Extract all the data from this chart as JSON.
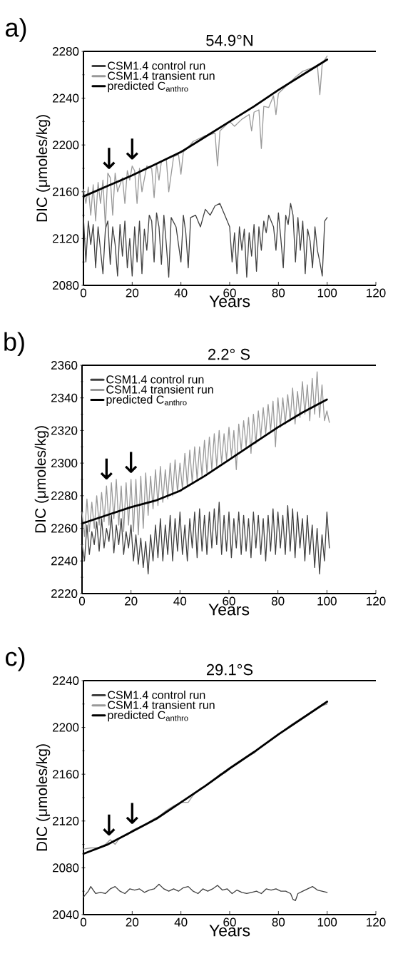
{
  "chart_data": [
    {
      "type": "line",
      "title": "54.9°N",
      "xlabel": "Years",
      "ylabel": "DIC (μmoles/kg)",
      "annotations": [
        "a)",
        {
          "text": "↓",
          "x": 10.5,
          "y": 2174
        },
        {
          "text": "↓",
          "x": 20,
          "y": 2182
        }
      ],
      "xlim": [
        0,
        120
      ],
      "xticks": [
        0,
        20,
        40,
        60,
        80,
        100,
        120
      ],
      "ylim": [
        2080,
        2280
      ],
      "yticks": [
        2080,
        2120,
        2160,
        2200,
        2240,
        2280
      ],
      "legend": "top left",
      "series": [
        {
          "name": "CSM1.4 control run",
          "color": "#404040",
          "x": [
            0,
            1,
            2,
            3,
            4,
            5,
            6,
            8,
            9,
            10,
            11,
            12,
            13,
            14,
            15,
            16,
            17,
            18,
            19,
            20,
            21,
            22,
            23,
            24,
            25,
            26,
            27,
            28,
            29,
            30,
            31,
            32,
            33,
            34,
            35,
            36,
            38,
            40,
            41,
            42,
            43,
            44,
            46,
            48,
            50,
            52,
            54,
            56,
            57,
            58,
            60,
            61,
            62,
            63,
            64,
            65,
            66,
            67,
            68,
            69,
            70,
            71,
            72,
            73,
            74,
            75,
            76,
            78,
            79,
            80,
            81,
            82,
            83,
            84,
            85,
            86,
            87,
            88,
            89,
            90,
            91,
            92,
            93,
            94,
            95,
            96,
            97,
            98,
            99,
            100
          ],
          "values": [
            2138,
            2100,
            2135,
            2115,
            2132,
            2095,
            2130,
            2090,
            2128,
            2135,
            2098,
            2130,
            2115,
            2088,
            2132,
            2105,
            2135,
            2095,
            2120,
            2088,
            2130,
            2100,
            2135,
            2090,
            2128,
            2110,
            2140,
            2135,
            2100,
            2142,
            2130,
            2098,
            2140,
            2115,
            2087,
            2138,
            2130,
            2100,
            2140,
            2125,
            2095,
            2138,
            2140,
            2130,
            2145,
            2140,
            2148,
            2150,
            2145,
            2140,
            2130,
            2100,
            2125,
            2090,
            2130,
            2110,
            2128,
            2087,
            2125,
            2105,
            2132,
            2092,
            2130,
            2110,
            2135,
            2125,
            2140,
            2130,
            2110,
            2142,
            2120,
            2095,
            2140,
            2132,
            2150,
            2140,
            2100,
            2138,
            2110,
            2135,
            2090,
            2128,
            2118,
            2095,
            2130,
            2110,
            2100,
            2088,
            2135,
            2138
          ]
        },
        {
          "name": "CSM1.4 transient run",
          "color": "#999999",
          "x": [
            0,
            1,
            2,
            3,
            4,
            5,
            6,
            7,
            8,
            9,
            10,
            11,
            12,
            13,
            14,
            16,
            17,
            18,
            19,
            20,
            21,
            22,
            23,
            24,
            26,
            28,
            29,
            30,
            31,
            32,
            34,
            35,
            37,
            39,
            40,
            41,
            43,
            45,
            47,
            50,
            54,
            55,
            56,
            60,
            62,
            65,
            68,
            69,
            70,
            72,
            73,
            74,
            76,
            78,
            79,
            80,
            84,
            87,
            90,
            94,
            96,
            97,
            98,
            100
          ],
          "values": [
            2162,
            2150,
            2164,
            2140,
            2166,
            2135,
            2168,
            2150,
            2170,
            2130,
            2176,
            2172,
            2140,
            2176,
            2160,
            2172,
            2150,
            2178,
            2170,
            2182,
            2178,
            2150,
            2180,
            2160,
            2182,
            2180,
            2155,
            2184,
            2170,
            2186,
            2188,
            2160,
            2190,
            2192,
            2175,
            2194,
            2198,
            2203,
            2205,
            2208,
            2210,
            2182,
            2212,
            2220,
            2216,
            2222,
            2226,
            2212,
            2228,
            2230,
            2197,
            2233,
            2232,
            2242,
            2226,
            2244,
            2252,
            2258,
            2263,
            2266,
            2268,
            2243,
            2270,
            2276
          ]
        },
        {
          "name": "predicted C$_{anthro}$",
          "color": "#000000",
          "x": [
            0,
            10,
            20,
            30,
            40,
            50,
            60,
            70,
            80,
            90,
            100
          ],
          "values": [
            2156,
            2165,
            2174,
            2184,
            2194,
            2207,
            2220,
            2233,
            2247,
            2260,
            2273
          ]
        }
      ]
    },
    {
      "type": "line",
      "title": "2.2° S",
      "xlabel": "Years",
      "ylabel": "DIC (μmoles/kg)",
      "annotations": [
        "b)",
        {
          "text": "↓",
          "x": 10,
          "y": 2286
        },
        {
          "text": "↓",
          "x": 20,
          "y": 2290
        }
      ],
      "xlim": [
        0,
        120
      ],
      "xticks": [
        0,
        20,
        40,
        60,
        80,
        100,
        120
      ],
      "ylim": [
        2220,
        2360
      ],
      "yticks": [
        2220,
        2240,
        2260,
        2280,
        2300,
        2320,
        2340,
        2360
      ],
      "legend": "top left",
      "series": [
        {
          "name": "CSM1.4 control run",
          "color": "#404040",
          "x": [
            0,
            1,
            2,
            3,
            4,
            5,
            6,
            7,
            8,
            9,
            10,
            11,
            12,
            13,
            14,
            15,
            16,
            17,
            18,
            19,
            20,
            21,
            22,
            23,
            24,
            25,
            26,
            27,
            28,
            29,
            30,
            31,
            32,
            33,
            34,
            35,
            36,
            37,
            38,
            39,
            40,
            41,
            42,
            43,
            44,
            45,
            46,
            47,
            48,
            49,
            50,
            51,
            52,
            53,
            54,
            55,
            56,
            57,
            58,
            59,
            60,
            61,
            62,
            63,
            64,
            65,
            66,
            67,
            68,
            69,
            70,
            71,
            72,
            73,
            74,
            75,
            76,
            77,
            78,
            79,
            80,
            81,
            82,
            83,
            84,
            85,
            86,
            87,
            88,
            89,
            90,
            91,
            92,
            93,
            94,
            95,
            96,
            97,
            98,
            99,
            100,
            101
          ],
          "values": [
            2250,
            2240,
            2262,
            2244,
            2258,
            2250,
            2264,
            2246,
            2266,
            2248,
            2260,
            2252,
            2268,
            2245,
            2262,
            2250,
            2266,
            2244,
            2258,
            2248,
            2262,
            2240,
            2256,
            2238,
            2254,
            2236,
            2252,
            2232,
            2256,
            2240,
            2262,
            2242,
            2266,
            2240,
            2262,
            2244,
            2268,
            2240,
            2266,
            2246,
            2270,
            2244,
            2262,
            2240,
            2266,
            2248,
            2270,
            2242,
            2272,
            2246,
            2268,
            2244,
            2270,
            2248,
            2272,
            2250,
            2276,
            2244,
            2268,
            2246,
            2270,
            2242,
            2266,
            2248,
            2270,
            2244,
            2268,
            2246,
            2266,
            2242,
            2270,
            2248,
            2268,
            2244,
            2266,
            2240,
            2268,
            2246,
            2272,
            2244,
            2270,
            2248,
            2268,
            2244,
            2274,
            2246,
            2272,
            2242,
            2270,
            2248,
            2266,
            2240,
            2268,
            2244,
            2262,
            2236,
            2260,
            2232,
            2256,
            2240,
            2270,
            2248
          ]
        },
        {
          "name": "CSM1.4 transient run",
          "color": "#999999",
          "x": [
            0,
            1,
            2,
            3,
            4,
            5,
            6,
            7,
            8,
            9,
            10,
            11,
            12,
            13,
            14,
            15,
            16,
            17,
            18,
            19,
            20,
            21,
            22,
            23,
            24,
            25,
            26,
            27,
            28,
            29,
            30,
            31,
            32,
            33,
            34,
            35,
            36,
            37,
            38,
            39,
            40,
            41,
            42,
            43,
            44,
            45,
            46,
            47,
            48,
            49,
            50,
            51,
            52,
            53,
            54,
            55,
            56,
            57,
            58,
            59,
            60,
            61,
            62,
            63,
            64,
            65,
            66,
            67,
            68,
            69,
            70,
            71,
            72,
            73,
            74,
            75,
            76,
            77,
            78,
            79,
            80,
            81,
            82,
            83,
            84,
            85,
            86,
            87,
            88,
            89,
            90,
            91,
            92,
            93,
            94,
            95,
            96,
            97,
            98,
            99,
            100,
            101
          ],
          "values": [
            2270,
            2255,
            2278,
            2258,
            2276,
            2260,
            2280,
            2262,
            2282,
            2264,
            2286,
            2262,
            2288,
            2266,
            2290,
            2262,
            2286,
            2258,
            2288,
            2262,
            2290,
            2258,
            2290,
            2256,
            2292,
            2260,
            2294,
            2268,
            2292,
            2272,
            2296,
            2274,
            2298,
            2276,
            2296,
            2278,
            2300,
            2280,
            2302,
            2282,
            2300,
            2284,
            2306,
            2286,
            2308,
            2288,
            2310,
            2290,
            2310,
            2292,
            2314,
            2294,
            2316,
            2296,
            2318,
            2298,
            2320,
            2300,
            2318,
            2302,
            2322,
            2304,
            2320,
            2296,
            2324,
            2308,
            2326,
            2310,
            2328,
            2306,
            2330,
            2312,
            2332,
            2316,
            2334,
            2318,
            2336,
            2320,
            2338,
            2310,
            2340,
            2322,
            2340,
            2324,
            2342,
            2326,
            2346,
            2324,
            2344,
            2328,
            2350,
            2330,
            2348,
            2326,
            2352,
            2330,
            2356,
            2328,
            2348,
            2326,
            2332,
            2325
          ]
        },
        {
          "name": "predicted C$_{anthro}$",
          "color": "#000000",
          "x": [
            0,
            10,
            20,
            30,
            40,
            50,
            60,
            70,
            80,
            90,
            100
          ],
          "values": [
            2263,
            2268,
            2273,
            2277,
            2283,
            2292,
            2302,
            2312,
            2322,
            2331,
            2339
          ]
        }
      ]
    },
    {
      "type": "line",
      "title": "29.1°S",
      "xlabel": "Years",
      "ylabel": "DIC (μmoles/kg)",
      "annotations": [
        "c)",
        {
          "text": "↓",
          "x": 10.5,
          "y": 2102
        },
        {
          "text": "↓",
          "x": 20,
          "y": 2112
        }
      ],
      "xlim": [
        0,
        120
      ],
      "xticks": [
        0,
        20,
        40,
        60,
        80,
        100,
        120
      ],
      "ylim": [
        2040,
        2240
      ],
      "yticks": [
        2040,
        2080,
        2120,
        2160,
        2200,
        2240
      ],
      "legend": "top left",
      "series": [
        {
          "name": "CSM1.4 control run",
          "color": "#404040",
          "x": [
            0,
            2,
            3,
            5,
            7,
            9,
            11,
            13,
            15,
            17,
            19,
            21,
            23,
            25,
            27,
            29,
            31,
            33,
            35,
            37,
            39,
            41,
            43,
            45,
            47,
            49,
            51,
            53,
            55,
            57,
            59,
            61,
            63,
            65,
            67,
            69,
            71,
            73,
            75,
            77,
            79,
            81,
            83,
            85,
            86,
            87,
            88,
            90,
            92,
            94,
            96,
            98,
            100
          ],
          "values": [
            2055,
            2060,
            2064,
            2058,
            2059,
            2058,
            2062,
            2064,
            2060,
            2058,
            2062,
            2061,
            2062,
            2059,
            2061,
            2062,
            2066,
            2062,
            2060,
            2062,
            2060,
            2063,
            2064,
            2060,
            2058,
            2062,
            2060,
            2062,
            2065,
            2061,
            2062,
            2058,
            2061,
            2059,
            2058,
            2059,
            2060,
            2058,
            2062,
            2061,
            2062,
            2060,
            2060,
            2058,
            2053,
            2052,
            2058,
            2060,
            2062,
            2064,
            2061,
            2060,
            2059
          ]
        },
        {
          "name": "CSM1.4 transient run",
          "color": "#999999",
          "x": [
            0,
            3,
            6,
            9,
            11,
            13,
            15,
            18,
            20,
            23,
            26,
            29,
            31,
            34,
            37,
            40,
            43,
            45,
            48,
            50,
            53,
            56,
            58,
            61,
            64,
            67,
            70,
            73,
            76,
            79,
            82,
            85,
            88,
            91,
            94,
            97,
            100
          ],
          "values": [
            2096,
            2097,
            2097,
            2100,
            2104,
            2100,
            2106,
            2108,
            2112,
            2115,
            2118,
            2122,
            2124,
            2129,
            2133,
            2136,
            2136,
            2142,
            2148,
            2150,
            2154,
            2160,
            2161,
            2166,
            2170,
            2175,
            2178,
            2184,
            2188,
            2192,
            2197,
            2202,
            2206,
            2210,
            2214,
            2218,
            2220
          ]
        },
        {
          "name": "predicted C$_{anthro}$",
          "color": "#000000",
          "x": [
            0,
            10,
            20,
            30,
            40,
            50,
            60,
            70,
            80,
            90,
            100
          ],
          "values": [
            2092,
            2100,
            2111,
            2122,
            2136,
            2150,
            2165,
            2179,
            2194,
            2208,
            2222
          ]
        }
      ]
    }
  ]
}
